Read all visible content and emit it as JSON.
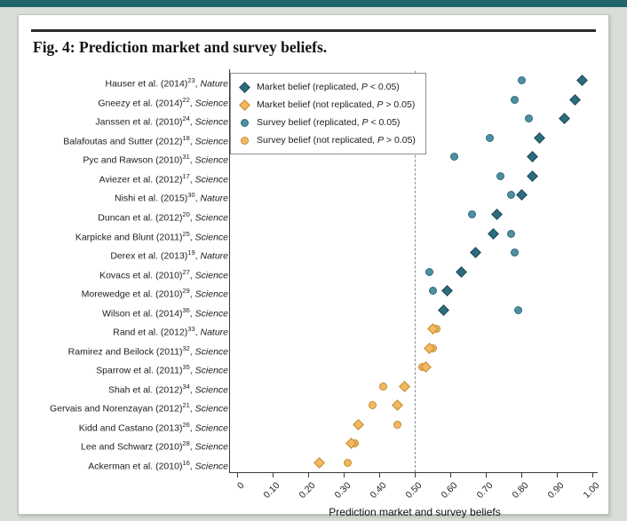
{
  "page": {
    "accent_bar_color": "#1f636c"
  },
  "figure": {
    "title": "Fig. 4: Prediction market and survey beliefs."
  },
  "chart_data": {
    "type": "scatter",
    "title": "Fig. 4: Prediction market and survey beliefs.",
    "xlabel": "Prediction market and survey beliefs",
    "xlim": [
      0,
      1.0
    ],
    "x_ticks": [
      "0",
      "0.10",
      "0.20",
      "0.30",
      "0.40",
      "0.50",
      "0.60",
      "0.70",
      "0.80",
      "0.90",
      "1.00"
    ],
    "x_tick_values": [
      0,
      0.1,
      0.2,
      0.3,
      0.4,
      0.5,
      0.6,
      0.7,
      0.8,
      0.9,
      1.0
    ],
    "threshold_x": 0.5,
    "grid": false,
    "legend_position": "top-left",
    "legend": [
      {
        "marker": "diamond",
        "status": "replicated",
        "label": "Market belief (replicated, P < 0.05)"
      },
      {
        "marker": "diamond",
        "status": "not_replicated",
        "label": "Market belief (not replicated, P > 0.05)"
      },
      {
        "marker": "circle",
        "status": "replicated",
        "label": "Survey belief (replicated, P < 0.05)"
      },
      {
        "marker": "circle",
        "status": "not_replicated",
        "label": "Survey belief (not replicated, P > 0.05)"
      }
    ],
    "colors": {
      "market_replicated": "#2e6b7c",
      "market_replicated_border": "#1c4b5a",
      "survey_replicated": "#4e8fa1",
      "survey_replicated_border": "#2e6b7c",
      "not_replicated": "#f4b860",
      "not_replicated_border": "#c08c33",
      "dashed_line": "#8c8c8c",
      "axis": "#3a3a3a"
    },
    "studies": [
      {
        "name": "Hauser et al. (2014)",
        "ref": "23",
        "journal": "Nature",
        "market": 0.97,
        "survey": 0.8,
        "replicated": true
      },
      {
        "name": "Gneezy et al. (2014)",
        "ref": "22",
        "journal": "Science",
        "market": 0.95,
        "survey": 0.78,
        "replicated": true
      },
      {
        "name": "Janssen et al. (2010)",
        "ref": "24",
        "journal": "Science",
        "market": 0.92,
        "survey": 0.82,
        "replicated": true
      },
      {
        "name": "Balafoutas and Sutter (2012)",
        "ref": "18",
        "journal": "Science",
        "market": 0.85,
        "survey": 0.71,
        "replicated": true
      },
      {
        "name": "Pyc and Rawson (2010)",
        "ref": "31",
        "journal": "Science",
        "market": 0.83,
        "survey": 0.61,
        "replicated": true
      },
      {
        "name": "Aviezer et al. (2012)",
        "ref": "17",
        "journal": "Science",
        "market": 0.83,
        "survey": 0.74,
        "replicated": true
      },
      {
        "name": "Nishi et al. (2015)",
        "ref": "30",
        "journal": "Nature",
        "market": 0.8,
        "survey": 0.77,
        "replicated": true
      },
      {
        "name": "Duncan et al. (2012)",
        "ref": "20",
        "journal": "Science",
        "market": 0.73,
        "survey": 0.66,
        "replicated": true
      },
      {
        "name": "Karpicke and Blunt (2011)",
        "ref": "25",
        "journal": "Science",
        "market": 0.72,
        "survey": 0.77,
        "replicated": true
      },
      {
        "name": "Derex et al. (2013)",
        "ref": "19",
        "journal": "Nature",
        "market": 0.67,
        "survey": 0.78,
        "replicated": true
      },
      {
        "name": "Kovacs et al. (2010)",
        "ref": "27",
        "journal": "Science",
        "market": 0.63,
        "survey": 0.54,
        "replicated": true
      },
      {
        "name": "Morewedge et al. (2010)",
        "ref": "29",
        "journal": "Science",
        "market": 0.59,
        "survey": 0.55,
        "replicated": true
      },
      {
        "name": "Wilson et al. (2014)",
        "ref": "36",
        "journal": "Science",
        "market": 0.58,
        "survey": 0.79,
        "replicated": true
      },
      {
        "name": "Rand et al. (2012)",
        "ref": "33",
        "journal": "Nature",
        "market": 0.55,
        "survey": 0.56,
        "replicated": false
      },
      {
        "name": "Ramirez and Beilock (2011)",
        "ref": "32",
        "journal": "Science",
        "market": 0.54,
        "survey": 0.55,
        "replicated": false
      },
      {
        "name": "Sparrow et al. (2011)",
        "ref": "35",
        "journal": "Science",
        "market": 0.53,
        "survey": 0.52,
        "replicated": false
      },
      {
        "name": "Shah et al. (2012)",
        "ref": "34",
        "journal": "Science",
        "market": 0.47,
        "survey": 0.41,
        "replicated": false
      },
      {
        "name": "Gervais and Norenzayan (2012)",
        "ref": "21",
        "journal": "Science",
        "market": 0.45,
        "survey": 0.38,
        "replicated": false
      },
      {
        "name": "Kidd and Castano (2013)",
        "ref": "26",
        "journal": "Science",
        "market": 0.34,
        "survey": 0.45,
        "replicated": false
      },
      {
        "name": "Lee and Schwarz (2010)",
        "ref": "28",
        "journal": "Science",
        "market": 0.32,
        "survey": 0.33,
        "replicated": false
      },
      {
        "name": "Ackerman et al. (2010)",
        "ref": "16",
        "journal": "Science",
        "market": 0.23,
        "survey": 0.31,
        "replicated": false
      }
    ]
  }
}
